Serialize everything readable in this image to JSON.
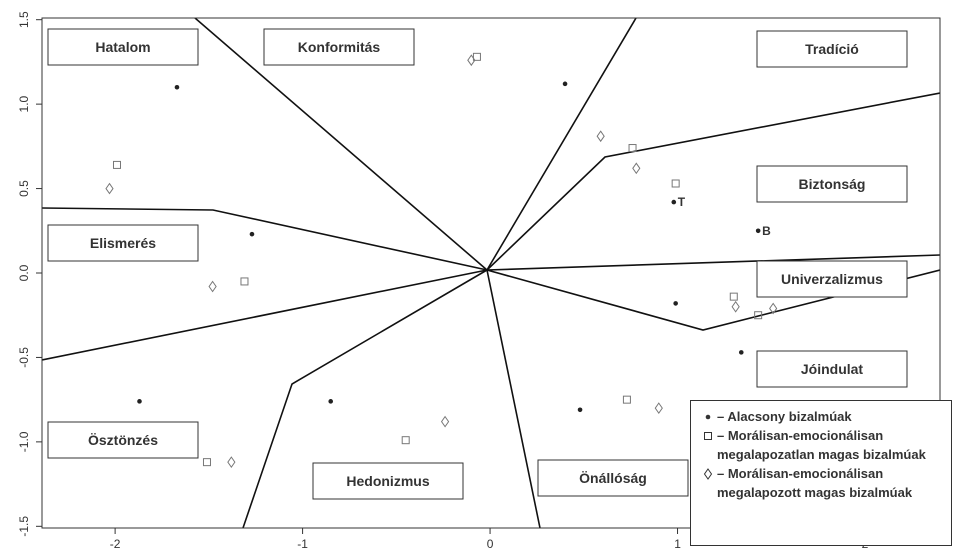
{
  "chart_data": {
    "type": "scatter",
    "xlim": [
      -2.39,
      2.4
    ],
    "ylim": [
      -1.51,
      1.51
    ],
    "xticks": [
      -2,
      -1,
      0,
      1,
      2
    ],
    "yticks": [
      -1.5,
      {
        "value": -1,
        "label": "-1.0"
      },
      -0.5,
      {
        "value": 0,
        "label": "0.0"
      },
      0.5,
      {
        "value": 1,
        "label": "1.0"
      },
      1.5
    ],
    "grid": false,
    "legend": "lower right",
    "regions": [
      "Hatalom",
      "Konformitás",
      "Tradíció",
      "Biztonság",
      "Elismerés",
      "Univerzalizmus",
      "Jóindulat",
      "Ösztönzés",
      "Hedonizmus",
      "Önállóság"
    ],
    "series": [
      {
        "name": "– Alacsony bizalmúak",
        "color": "#222222",
        "marker": "circle",
        "x": [
          -1.67,
          -1.27,
          -1.87,
          -0.85,
          0.4,
          0.99,
          1.34,
          0.48,
          0.98,
          1.43
        ],
        "values": [
          1.1,
          0.23,
          -0.76,
          -0.76,
          1.12,
          -0.18,
          -0.47,
          -0.81,
          0.42,
          0.25
        ],
        "labels": [
          null,
          null,
          null,
          null,
          null,
          null,
          null,
          null,
          "T",
          "B"
        ]
      },
      {
        "name": "– Morálisan-emocionálisan megalapozatlan magas bizalmúak",
        "color": "#777777",
        "marker": "square",
        "x": [
          -1.99,
          -1.31,
          -0.07,
          0.76,
          0.99,
          1.3,
          1.43,
          0.73,
          -0.45,
          -1.51
        ],
        "values": [
          0.64,
          -0.05,
          1.28,
          0.74,
          0.53,
          -0.14,
          -0.25,
          -0.75,
          -0.99,
          -1.12
        ]
      },
      {
        "name": "– Morálisan-emocionálisan megalapozott magas bizalmúak",
        "color": "#777777",
        "marker": "diamond",
        "x": [
          -2.03,
          -1.48,
          -0.1,
          0.59,
          0.78,
          1.31,
          1.51,
          0.9,
          -0.24,
          -1.38
        ],
        "values": [
          0.5,
          -0.08,
          1.26,
          0.81,
          0.62,
          -0.2,
          -0.21,
          -0.8,
          -0.88,
          -1.12
        ]
      }
    ]
  }
}
